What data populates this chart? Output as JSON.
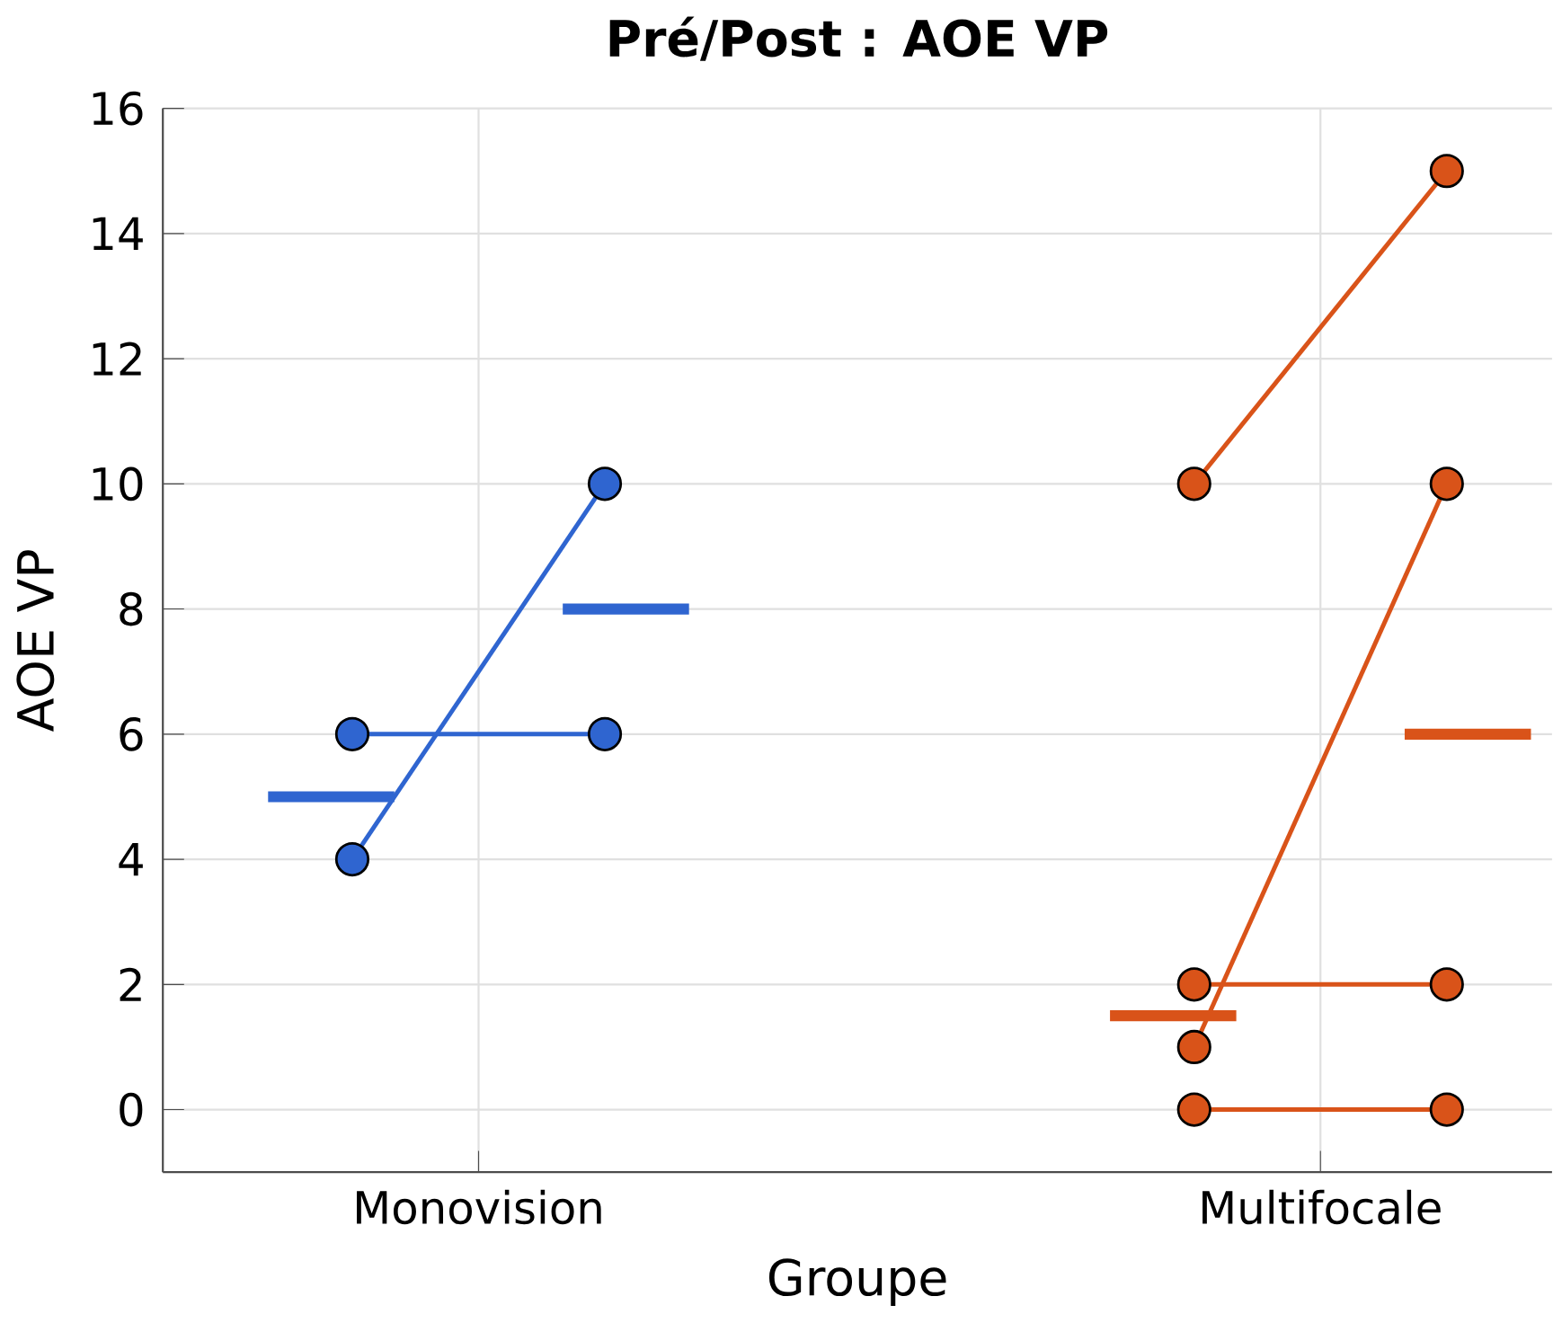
{
  "chart_data": {
    "type": "line",
    "title": "Pré/Post : AOE VP",
    "xlabel": "Groupe",
    "ylabel": "AOE VP",
    "categories": [
      null,
      null,
      null,
      null,
      null,
      null,
      null,
      "Monovision",
      null,
      null,
      null,
      null,
      null,
      null,
      null,
      null,
      null,
      null,
      null,
      null,
      null,
      null,
      null,
      null,
      null,
      null,
      null,
      "Multifocale",
      null,
      null,
      null,
      null,
      null
    ],
    "ylim": [
      -1,
      16
    ],
    "yticks": [
      0,
      2,
      4,
      6,
      8,
      10,
      12,
      14,
      16
    ],
    "grid": true,
    "marker": "circle",
    "series": [
      {
        "color": "#2f65d0",
        "values": [
          null,
          null,
          null,
          null,
          4,
          null,
          null,
          null,
          null,
          null,
          10,
          null,
          null,
          null,
          null,
          null,
          null,
          null,
          null,
          null,
          null,
          null,
          null,
          null,
          null,
          null,
          null,
          null,
          null,
          null,
          null,
          null,
          null
        ]
      },
      {
        "color": "#2f65d0",
        "values": [
          null,
          null,
          null,
          null,
          6,
          null,
          null,
          null,
          null,
          null,
          6,
          null,
          null,
          null,
          null,
          null,
          null,
          null,
          null,
          null,
          null,
          null,
          null,
          null,
          null,
          null,
          null,
          null,
          null,
          null,
          null,
          null,
          null
        ]
      },
      {
        "color": "#2f65d0",
        "values": [
          null,
          null,
          5,
          null,
          null,
          5,
          null,
          null,
          null,
          null,
          null,
          null,
          null,
          null,
          null,
          null,
          null,
          null,
          null,
          null,
          null,
          null,
          null,
          null,
          null,
          null,
          null,
          null,
          null,
          null,
          null,
          null,
          null
        ],
        "marker": "none"
      },
      {
        "color": "#2f65d0",
        "values": [
          null,
          null,
          null,
          null,
          null,
          null,
          null,
          null,
          null,
          8,
          null,
          null,
          8,
          null,
          null,
          null,
          null,
          null,
          null,
          null,
          null,
          null,
          null,
          null,
          null,
          null,
          null,
          null,
          null,
          null,
          null,
          null,
          null
        ],
        "marker": "none"
      },
      {
        "color": "#d95319",
        "values": [
          null,
          null,
          null,
          null,
          null,
          null,
          null,
          null,
          null,
          null,
          null,
          null,
          null,
          null,
          null,
          null,
          null,
          null,
          null,
          null,
          null,
          null,
          null,
          null,
          10,
          null,
          null,
          null,
          null,
          null,
          15,
          null,
          null
        ]
      },
      {
        "color": "#d95319",
        "values": [
          null,
          null,
          null,
          null,
          null,
          null,
          null,
          null,
          null,
          null,
          null,
          null,
          null,
          null,
          null,
          null,
          null,
          null,
          null,
          null,
          null,
          null,
          null,
          null,
          1,
          null,
          null,
          null,
          null,
          null,
          10,
          null,
          null
        ]
      },
      {
        "color": "#d95319",
        "values": [
          null,
          null,
          null,
          null,
          null,
          null,
          null,
          null,
          null,
          null,
          null,
          null,
          null,
          null,
          null,
          null,
          null,
          null,
          null,
          null,
          null,
          null,
          null,
          null,
          2,
          null,
          null,
          null,
          null,
          null,
          2,
          null,
          null
        ]
      },
      {
        "color": "#d95319",
        "values": [
          null,
          null,
          null,
          null,
          null,
          null,
          null,
          null,
          null,
          null,
          null,
          null,
          null,
          null,
          null,
          null,
          null,
          null,
          null,
          null,
          null,
          null,
          null,
          null,
          0,
          null,
          null,
          null,
          null,
          null,
          0,
          null,
          null
        ]
      },
      {
        "color": "#d95319",
        "values": [
          null,
          null,
          null,
          null,
          null,
          null,
          null,
          null,
          null,
          null,
          null,
          null,
          null,
          null,
          null,
          null,
          null,
          null,
          null,
          null,
          null,
          null,
          1.5,
          null,
          null,
          1.5,
          null,
          null,
          null,
          null,
          null,
          null,
          null
        ],
        "marker": "none"
      },
      {
        "color": "#d95319",
        "values": [
          null,
          null,
          null,
          null,
          null,
          null,
          null,
          null,
          null,
          null,
          null,
          null,
          null,
          null,
          null,
          null,
          null,
          null,
          null,
          null,
          null,
          null,
          null,
          null,
          null,
          null,
          null,
          null,
          null,
          6,
          null,
          null,
          6
        ],
        "marker": "none"
      }
    ]
  }
}
